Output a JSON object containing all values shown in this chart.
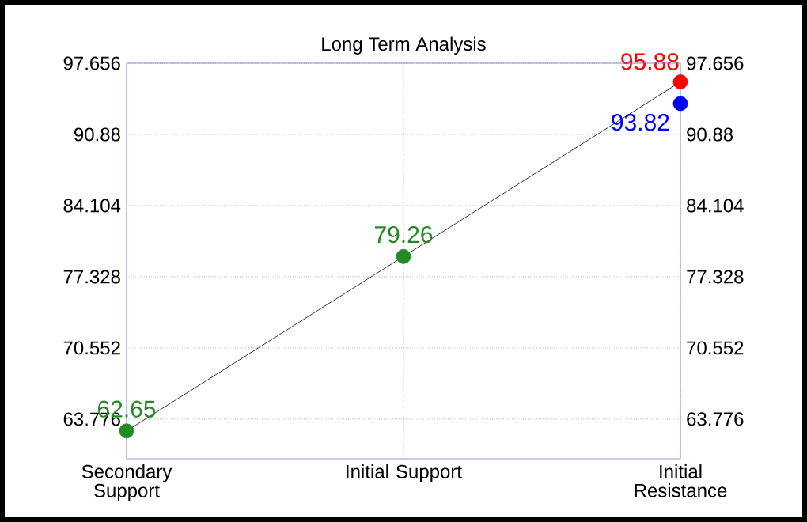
{
  "chart_data": {
    "type": "line",
    "title": "Long Term Analysis",
    "categories": [
      "Secondary Support",
      "Initial Support",
      "Initial Resistance"
    ],
    "series": [
      {
        "color": "#000000",
        "values": [
          62.65,
          79.26,
          95.88
        ],
        "marker": "none"
      },
      {
        "type": "scatter",
        "color": "#228b22",
        "values": [
          62.65,
          79.26,
          null
        ],
        "value_labels": [
          "62.65",
          "79.26",
          null
        ],
        "marker": "circle"
      },
      {
        "type": "scatter",
        "color": "#0000ff",
        "values": [
          null,
          null,
          93.82
        ],
        "value_labels": [
          null,
          null,
          "93.82"
        ],
        "marker": "circle"
      },
      {
        "type": "scatter",
        "color": "#ff0000",
        "values": [
          null,
          null,
          95.88
        ],
        "value_labels": [
          null,
          null,
          "95.88"
        ],
        "marker": "circle"
      }
    ],
    "ylim": [
      60,
      97.656
    ],
    "yticks": [
      63.776,
      70.552,
      77.328,
      84.104,
      90.88,
      97.656
    ],
    "y2lim": [
      60,
      97.656
    ],
    "y2ticks": [
      63.776,
      70.552,
      77.328,
      84.104,
      90.88,
      97.656
    ],
    "grid": true
  }
}
